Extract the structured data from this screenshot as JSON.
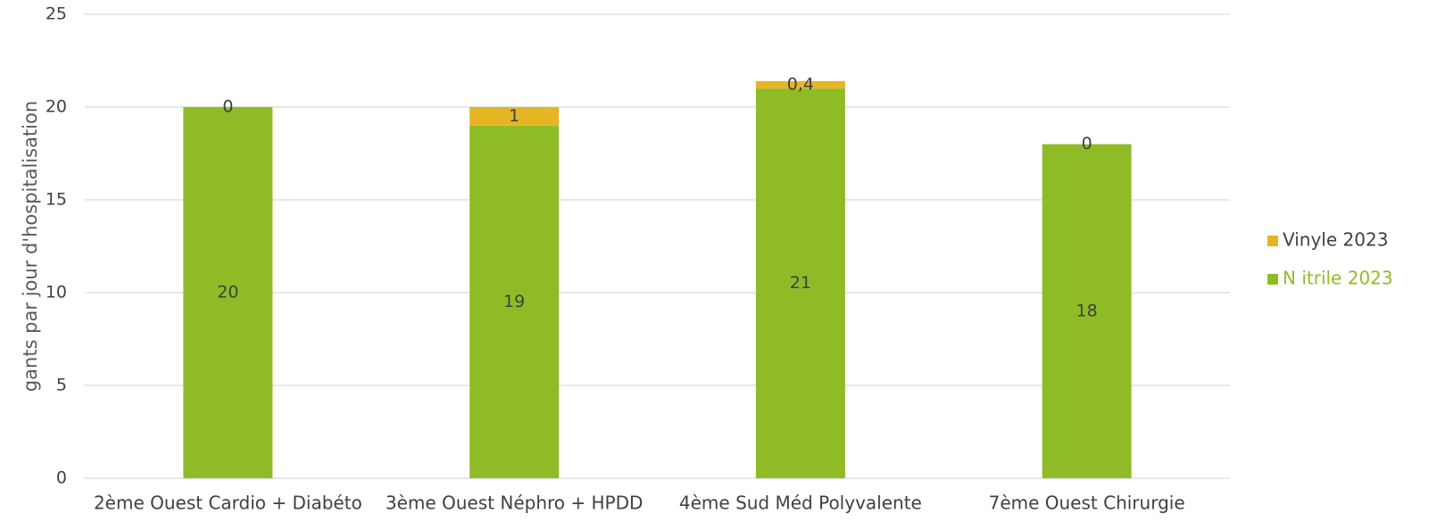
{
  "chart_data": {
    "type": "stacked_bar",
    "ylabel": "gants par jour d'hospitalisation",
    "categories": [
      "2ème Ouest Cardio + Diabéto",
      "3ème Ouest Néphro + HPDD",
      "4ème Sud Méd Polyvalente",
      "7ème Ouest Chirurgie"
    ],
    "series": [
      {
        "name": "N itrile 2023",
        "color": "#8fbc26",
        "values": [
          20,
          19,
          21,
          18
        ]
      },
      {
        "name": "Vinyle 2023",
        "color": "#e6b523",
        "values": [
          0,
          1,
          0.4,
          0
        ],
        "value_labels": [
          "0",
          "1",
          "0,4",
          "0"
        ]
      }
    ],
    "ylim": [
      0,
      25
    ],
    "yticks": [
      0,
      5,
      10,
      15,
      20,
      25
    ],
    "grid": true,
    "legend": "right"
  }
}
